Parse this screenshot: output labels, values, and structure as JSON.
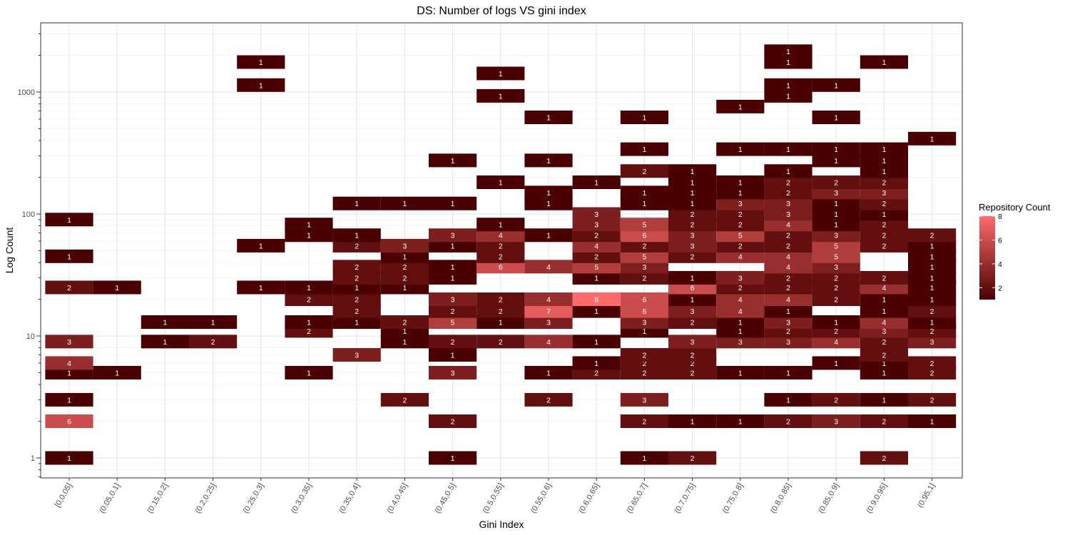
{
  "chart_data": {
    "type": "heatmap",
    "title": "DS: Number of logs VS gini index",
    "xlabel": "Gini Index",
    "ylabel": "Log Count",
    "y_scale": "log10",
    "ylim": [
      0.7,
      3600
    ],
    "grid": true,
    "legend_position": "right",
    "legend": {
      "title": "Repository Count",
      "ticks": [
        2,
        4,
        6,
        8
      ],
      "range": [
        1,
        8
      ],
      "color_low": "#4a0000",
      "color_high": "#ff6b6b"
    },
    "x_categories": [
      "[0,0.05]",
      "(0.05,0.1]",
      "(0.15,0.2]",
      "(0.2,0.25]",
      "(0.25,0.3]",
      "(0.3,0.35]",
      "(0.35,0.4]",
      "(0.4,0.45]",
      "(0.45,0.5]",
      "(0.5,0.55]",
      "(0.55,0.6]",
      "(0.6,0.65]",
      "(0.65,0.7]",
      "(0.7,0.75]",
      "(0.75,0.8]",
      "(0.8,0.85]",
      "(0.85,0.9]",
      "(0.9,0.95]",
      "(0.95,1]"
    ],
    "y_ticks": [
      1,
      10,
      100,
      1000
    ],
    "y_bins": [
      1,
      2,
      2.5,
      3,
      4,
      5,
      6,
      7,
      9,
      11,
      13,
      16,
      20,
      25,
      30,
      37,
      45,
      55,
      67,
      82,
      100,
      122,
      150,
      182,
      225,
      275,
      340,
      415,
      510,
      620,
      760,
      930,
      1140,
      1420,
      1760,
      2160,
      2650
    ],
    "cells": [
      {
        "x": 0,
        "y": 1,
        "value": 1
      },
      {
        "x": 0,
        "y": 2,
        "value": 6
      },
      {
        "x": 0,
        "y": 3,
        "value": 1
      },
      {
        "x": 0,
        "y": 5,
        "value": 1
      },
      {
        "x": 0,
        "y": 6,
        "value": 4
      },
      {
        "x": 0,
        "y": 9,
        "value": 3
      },
      {
        "x": 0,
        "y": 25,
        "value": 2
      },
      {
        "x": 0,
        "y": 45,
        "value": 1
      },
      {
        "x": 0,
        "y": 90,
        "value": 1
      },
      {
        "x": 1,
        "y": 5,
        "value": 1
      },
      {
        "x": 1,
        "y": 25,
        "value": 1
      },
      {
        "x": 2,
        "y": 9,
        "value": 1
      },
      {
        "x": 2,
        "y": 13,
        "value": 1
      },
      {
        "x": 3,
        "y": 9,
        "value": 2
      },
      {
        "x": 3,
        "y": 13,
        "value": 1
      },
      {
        "x": 4,
        "y": 25,
        "value": 1
      },
      {
        "x": 4,
        "y": 55,
        "value": 1
      },
      {
        "x": 4,
        "y": 1140,
        "value": 1
      },
      {
        "x": 4,
        "y": 1760,
        "value": 1
      },
      {
        "x": 5,
        "y": 5,
        "value": 1
      },
      {
        "x": 5,
        "y": 11,
        "value": 2
      },
      {
        "x": 5,
        "y": 13,
        "value": 1
      },
      {
        "x": 5,
        "y": 20,
        "value": 2
      },
      {
        "x": 5,
        "y": 25,
        "value": 1
      },
      {
        "x": 5,
        "y": 67,
        "value": 1
      },
      {
        "x": 5,
        "y": 82,
        "value": 1
      },
      {
        "x": 6,
        "y": 7,
        "value": 3
      },
      {
        "x": 6,
        "y": 13,
        "value": 1
      },
      {
        "x": 6,
        "y": 16,
        "value": 2
      },
      {
        "x": 6,
        "y": 20,
        "value": 2
      },
      {
        "x": 6,
        "y": 25,
        "value": 1
      },
      {
        "x": 6,
        "y": 30,
        "value": 2
      },
      {
        "x": 6,
        "y": 37,
        "value": 2
      },
      {
        "x": 6,
        "y": 55,
        "value": 2
      },
      {
        "x": 6,
        "y": 67,
        "value": 1
      },
      {
        "x": 6,
        "y": 122,
        "value": 1
      },
      {
        "x": 7,
        "y": 3,
        "value": 2
      },
      {
        "x": 7,
        "y": 9,
        "value": 1
      },
      {
        "x": 7,
        "y": 11,
        "value": 1
      },
      {
        "x": 7,
        "y": 13,
        "value": 2
      },
      {
        "x": 7,
        "y": 25,
        "value": 1
      },
      {
        "x": 7,
        "y": 30,
        "value": 2
      },
      {
        "x": 7,
        "y": 37,
        "value": 2
      },
      {
        "x": 7,
        "y": 45,
        "value": 1
      },
      {
        "x": 7,
        "y": 55,
        "value": 3
      },
      {
        "x": 7,
        "y": 122,
        "value": 1
      },
      {
        "x": 8,
        "y": 1,
        "value": 1
      },
      {
        "x": 8,
        "y": 2,
        "value": 2
      },
      {
        "x": 8,
        "y": 5,
        "value": 3
      },
      {
        "x": 8,
        "y": 7,
        "value": 1
      },
      {
        "x": 8,
        "y": 9,
        "value": 2
      },
      {
        "x": 8,
        "y": 13,
        "value": 5
      },
      {
        "x": 8,
        "y": 16,
        "value": 2
      },
      {
        "x": 8,
        "y": 20,
        "value": 3
      },
      {
        "x": 8,
        "y": 30,
        "value": 1
      },
      {
        "x": 8,
        "y": 37,
        "value": 1
      },
      {
        "x": 8,
        "y": 55,
        "value": 1
      },
      {
        "x": 8,
        "y": 67,
        "value": 3
      },
      {
        "x": 8,
        "y": 122,
        "value": 1
      },
      {
        "x": 8,
        "y": 275,
        "value": 1
      },
      {
        "x": 9,
        "y": 9,
        "value": 2
      },
      {
        "x": 9,
        "y": 13,
        "value": 1
      },
      {
        "x": 9,
        "y": 16,
        "value": 2
      },
      {
        "x": 9,
        "y": 20,
        "value": 2
      },
      {
        "x": 9,
        "y": 37,
        "value": 6
      },
      {
        "x": 9,
        "y": 45,
        "value": 2
      },
      {
        "x": 9,
        "y": 55,
        "value": 2
      },
      {
        "x": 9,
        "y": 67,
        "value": 4
      },
      {
        "x": 9,
        "y": 82,
        "value": 1
      },
      {
        "x": 9,
        "y": 182,
        "value": 1
      },
      {
        "x": 9,
        "y": 930,
        "value": 1
      },
      {
        "x": 9,
        "y": 1420,
        "value": 1
      },
      {
        "x": 10,
        "y": 3,
        "value": 2
      },
      {
        "x": 10,
        "y": 5,
        "value": 1
      },
      {
        "x": 10,
        "y": 9,
        "value": 4
      },
      {
        "x": 10,
        "y": 13,
        "value": 3
      },
      {
        "x": 10,
        "y": 16,
        "value": 7
      },
      {
        "x": 10,
        "y": 20,
        "value": 4
      },
      {
        "x": 10,
        "y": 37,
        "value": 4
      },
      {
        "x": 10,
        "y": 67,
        "value": 1
      },
      {
        "x": 10,
        "y": 122,
        "value": 1
      },
      {
        "x": 10,
        "y": 150,
        "value": 1
      },
      {
        "x": 10,
        "y": 275,
        "value": 1
      },
      {
        "x": 10,
        "y": 620,
        "value": 1
      },
      {
        "x": 11,
        "y": 5,
        "value": 2
      },
      {
        "x": 11,
        "y": 6,
        "value": 1
      },
      {
        "x": 11,
        "y": 9,
        "value": 1
      },
      {
        "x": 11,
        "y": 16,
        "value": 1
      },
      {
        "x": 11,
        "y": 20,
        "value": 8
      },
      {
        "x": 11,
        "y": 30,
        "value": 1
      },
      {
        "x": 11,
        "y": 37,
        "value": 5
      },
      {
        "x": 11,
        "y": 45,
        "value": 2
      },
      {
        "x": 11,
        "y": 55,
        "value": 4
      },
      {
        "x": 11,
        "y": 67,
        "value": 2
      },
      {
        "x": 11,
        "y": 82,
        "value": 3
      },
      {
        "x": 11,
        "y": 100,
        "value": 3
      },
      {
        "x": 11,
        "y": 182,
        "value": 1
      },
      {
        "x": 12,
        "y": 1,
        "value": 1
      },
      {
        "x": 12,
        "y": 2,
        "value": 2
      },
      {
        "x": 12,
        "y": 3,
        "value": 3
      },
      {
        "x": 12,
        "y": 5,
        "value": 2
      },
      {
        "x": 12,
        "y": 6,
        "value": 2
      },
      {
        "x": 12,
        "y": 7,
        "value": 2
      },
      {
        "x": 12,
        "y": 11,
        "value": 1
      },
      {
        "x": 12,
        "y": 13,
        "value": 3
      },
      {
        "x": 12,
        "y": 16,
        "value": 6
      },
      {
        "x": 12,
        "y": 20,
        "value": 6
      },
      {
        "x": 12,
        "y": 30,
        "value": 2
      },
      {
        "x": 12,
        "y": 37,
        "value": 3
      },
      {
        "x": 12,
        "y": 45,
        "value": 5
      },
      {
        "x": 12,
        "y": 55,
        "value": 2
      },
      {
        "x": 12,
        "y": 67,
        "value": 6
      },
      {
        "x": 12,
        "y": 82,
        "value": 5
      },
      {
        "x": 12,
        "y": 122,
        "value": 1
      },
      {
        "x": 12,
        "y": 150,
        "value": 1
      },
      {
        "x": 12,
        "y": 225,
        "value": 2
      },
      {
        "x": 12,
        "y": 340,
        "value": 1
      },
      {
        "x": 12,
        "y": 620,
        "value": 1
      },
      {
        "x": 13,
        "y": 1,
        "value": 2
      },
      {
        "x": 13,
        "y": 2,
        "value": 1
      },
      {
        "x": 13,
        "y": 5,
        "value": 2
      },
      {
        "x": 13,
        "y": 6,
        "value": 2
      },
      {
        "x": 13,
        "y": 7,
        "value": 2
      },
      {
        "x": 13,
        "y": 9,
        "value": 3
      },
      {
        "x": 13,
        "y": 13,
        "value": 2
      },
      {
        "x": 13,
        "y": 16,
        "value": 3
      },
      {
        "x": 13,
        "y": 20,
        "value": 1
      },
      {
        "x": 13,
        "y": 25,
        "value": 6
      },
      {
        "x": 13,
        "y": 30,
        "value": 1
      },
      {
        "x": 13,
        "y": 45,
        "value": 2
      },
      {
        "x": 13,
        "y": 55,
        "value": 3
      },
      {
        "x": 13,
        "y": 67,
        "value": 3
      },
      {
        "x": 13,
        "y": 82,
        "value": 2
      },
      {
        "x": 13,
        "y": 100,
        "value": 2
      },
      {
        "x": 13,
        "y": 122,
        "value": 1
      },
      {
        "x": 13,
        "y": 150,
        "value": 1
      },
      {
        "x": 13,
        "y": 182,
        "value": 1
      },
      {
        "x": 13,
        "y": 225,
        "value": 1
      },
      {
        "x": 14,
        "y": 2,
        "value": 1
      },
      {
        "x": 14,
        "y": 5,
        "value": 1
      },
      {
        "x": 14,
        "y": 9,
        "value": 3
      },
      {
        "x": 14,
        "y": 11,
        "value": 1
      },
      {
        "x": 14,
        "y": 13,
        "value": 1
      },
      {
        "x": 14,
        "y": 16,
        "value": 4
      },
      {
        "x": 14,
        "y": 20,
        "value": 4
      },
      {
        "x": 14,
        "y": 25,
        "value": 2
      },
      {
        "x": 14,
        "y": 30,
        "value": 3
      },
      {
        "x": 14,
        "y": 45,
        "value": 4
      },
      {
        "x": 14,
        "y": 55,
        "value": 2
      },
      {
        "x": 14,
        "y": 67,
        "value": 5
      },
      {
        "x": 14,
        "y": 82,
        "value": 2
      },
      {
        "x": 14,
        "y": 100,
        "value": 2
      },
      {
        "x": 14,
        "y": 122,
        "value": 3
      },
      {
        "x": 14,
        "y": 150,
        "value": 1
      },
      {
        "x": 14,
        "y": 182,
        "value": 1
      },
      {
        "x": 14,
        "y": 340,
        "value": 1
      },
      {
        "x": 14,
        "y": 760,
        "value": 1
      },
      {
        "x": 15,
        "y": 2,
        "value": 2
      },
      {
        "x": 15,
        "y": 3,
        "value": 1
      },
      {
        "x": 15,
        "y": 5,
        "value": 1
      },
      {
        "x": 15,
        "y": 9,
        "value": 3
      },
      {
        "x": 15,
        "y": 11,
        "value": 2
      },
      {
        "x": 15,
        "y": 13,
        "value": 3
      },
      {
        "x": 15,
        "y": 16,
        "value": 1
      },
      {
        "x": 15,
        "y": 20,
        "value": 4
      },
      {
        "x": 15,
        "y": 25,
        "value": 2
      },
      {
        "x": 15,
        "y": 30,
        "value": 2
      },
      {
        "x": 15,
        "y": 37,
        "value": 4
      },
      {
        "x": 15,
        "y": 45,
        "value": 4
      },
      {
        "x": 15,
        "y": 55,
        "value": 2
      },
      {
        "x": 15,
        "y": 67,
        "value": 2
      },
      {
        "x": 15,
        "y": 82,
        "value": 4
      },
      {
        "x": 15,
        "y": 100,
        "value": 3
      },
      {
        "x": 15,
        "y": 122,
        "value": 3
      },
      {
        "x": 15,
        "y": 150,
        "value": 2
      },
      {
        "x": 15,
        "y": 182,
        "value": 2
      },
      {
        "x": 15,
        "y": 225,
        "value": 1
      },
      {
        "x": 15,
        "y": 340,
        "value": 1
      },
      {
        "x": 15,
        "y": 930,
        "value": 1
      },
      {
        "x": 15,
        "y": 1140,
        "value": 1
      },
      {
        "x": 15,
        "y": 1760,
        "value": 1
      },
      {
        "x": 15,
        "y": 2160,
        "value": 1
      },
      {
        "x": 16,
        "y": 2,
        "value": 3
      },
      {
        "x": 16,
        "y": 3,
        "value": 2
      },
      {
        "x": 16,
        "y": 6,
        "value": 1
      },
      {
        "x": 16,
        "y": 9,
        "value": 4
      },
      {
        "x": 16,
        "y": 11,
        "value": 2
      },
      {
        "x": 16,
        "y": 13,
        "value": 1
      },
      {
        "x": 16,
        "y": 20,
        "value": 2
      },
      {
        "x": 16,
        "y": 25,
        "value": 2
      },
      {
        "x": 16,
        "y": 30,
        "value": 2
      },
      {
        "x": 16,
        "y": 37,
        "value": 3
      },
      {
        "x": 16,
        "y": 45,
        "value": 5
      },
      {
        "x": 16,
        "y": 55,
        "value": 5
      },
      {
        "x": 16,
        "y": 67,
        "value": 3
      },
      {
        "x": 16,
        "y": 82,
        "value": 1
      },
      {
        "x": 16,
        "y": 100,
        "value": 1
      },
      {
        "x": 16,
        "y": 122,
        "value": 1
      },
      {
        "x": 16,
        "y": 150,
        "value": 3
      },
      {
        "x": 16,
        "y": 182,
        "value": 2
      },
      {
        "x": 16,
        "y": 275,
        "value": 1
      },
      {
        "x": 16,
        "y": 340,
        "value": 1
      },
      {
        "x": 16,
        "y": 620,
        "value": 1
      },
      {
        "x": 16,
        "y": 1140,
        "value": 1
      },
      {
        "x": 17,
        "y": 1,
        "value": 2
      },
      {
        "x": 17,
        "y": 2,
        "value": 2
      },
      {
        "x": 17,
        "y": 3,
        "value": 1
      },
      {
        "x": 17,
        "y": 5,
        "value": 1
      },
      {
        "x": 17,
        "y": 6,
        "value": 1
      },
      {
        "x": 17,
        "y": 7,
        "value": 2
      },
      {
        "x": 17,
        "y": 9,
        "value": 2
      },
      {
        "x": 17,
        "y": 11,
        "value": 3
      },
      {
        "x": 17,
        "y": 13,
        "value": 4
      },
      {
        "x": 17,
        "y": 16,
        "value": 1
      },
      {
        "x": 17,
        "y": 20,
        "value": 1
      },
      {
        "x": 17,
        "y": 25,
        "value": 4
      },
      {
        "x": 17,
        "y": 30,
        "value": 2
      },
      {
        "x": 17,
        "y": 55,
        "value": 2
      },
      {
        "x": 17,
        "y": 67,
        "value": 2
      },
      {
        "x": 17,
        "y": 82,
        "value": 2
      },
      {
        "x": 17,
        "y": 100,
        "value": 1
      },
      {
        "x": 17,
        "y": 122,
        "value": 2
      },
      {
        "x": 17,
        "y": 150,
        "value": 3
      },
      {
        "x": 17,
        "y": 182,
        "value": 2
      },
      {
        "x": 17,
        "y": 225,
        "value": 1
      },
      {
        "x": 17,
        "y": 275,
        "value": 1
      },
      {
        "x": 17,
        "y": 340,
        "value": 1
      },
      {
        "x": 17,
        "y": 1760,
        "value": 1
      },
      {
        "x": 18,
        "y": 2,
        "value": 1
      },
      {
        "x": 18,
        "y": 3,
        "value": 2
      },
      {
        "x": 18,
        "y": 5,
        "value": 2
      },
      {
        "x": 18,
        "y": 6,
        "value": 2
      },
      {
        "x": 18,
        "y": 9,
        "value": 3
      },
      {
        "x": 18,
        "y": 11,
        "value": 2
      },
      {
        "x": 18,
        "y": 13,
        "value": 1
      },
      {
        "x": 18,
        "y": 16,
        "value": 2
      },
      {
        "x": 18,
        "y": 20,
        "value": 1
      },
      {
        "x": 18,
        "y": 25,
        "value": 1
      },
      {
        "x": 18,
        "y": 30,
        "value": 1
      },
      {
        "x": 18,
        "y": 37,
        "value": 1
      },
      {
        "x": 18,
        "y": 45,
        "value": 1
      },
      {
        "x": 18,
        "y": 55,
        "value": 1
      },
      {
        "x": 18,
        "y": 67,
        "value": 2
      },
      {
        "x": 18,
        "y": 415,
        "value": 1
      }
    ]
  }
}
